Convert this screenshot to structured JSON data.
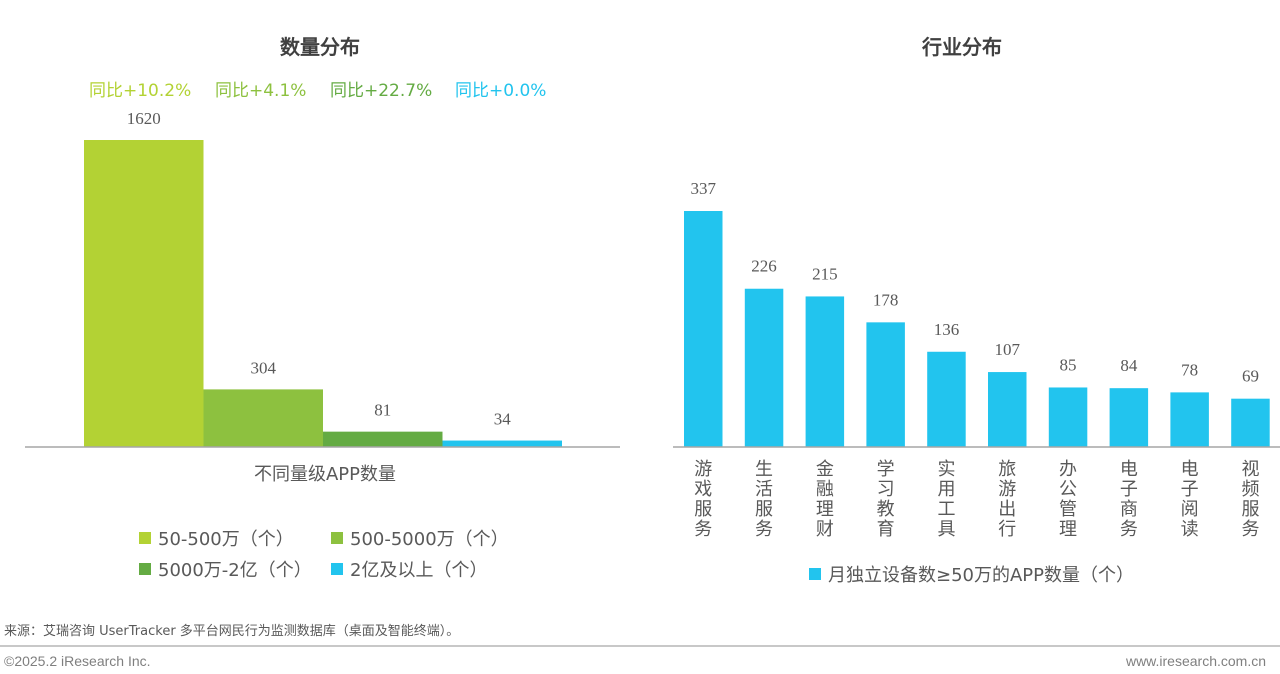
{
  "chart_data": [
    {
      "type": "bar",
      "title": "数量分布",
      "xlabel": "不同量级APP数量",
      "ylabel": "",
      "categories": [
        "50-500万（个）",
        "500-5000万（个）",
        "5000万-2亿（个）",
        "2亿及以上（个）"
      ],
      "values": [
        1620,
        304,
        81,
        34
      ],
      "colors": [
        "#b3d234",
        "#8dc13f",
        "#64ab43",
        "#22c4ee"
      ],
      "yoy_labels": [
        "同比+10.2%",
        "同比+4.1%",
        "同比+22.7%",
        "同比+0.0%"
      ],
      "yoy_colors": [
        "#b3d234",
        "#8dc13f",
        "#64ab43",
        "#22c4ee"
      ],
      "legend": {
        "placement": "bottom",
        "entries": [
          "50-500万（个）",
          "500-5000万（个）",
          "5000万-2亿（个）",
          "2亿及以上（个）"
        ]
      },
      "ylim": [
        0,
        1620
      ],
      "grid": false
    },
    {
      "type": "bar",
      "title": "行业分布",
      "xlabel": "",
      "ylabel": "",
      "categories": [
        "游戏服务",
        "生活服务",
        "金融理财",
        "学习教育",
        "实用工具",
        "旅游出行",
        "办公管理",
        "电子商务",
        "电子阅读",
        "视频服务"
      ],
      "series": [
        {
          "name": "月独立设备数≥50万的APP数量（个）",
          "values": [
            337,
            226,
            215,
            178,
            136,
            107,
            85,
            84,
            78,
            69
          ],
          "color": "#22c4ee"
        }
      ],
      "legend": {
        "placement": "bottom",
        "entries": [
          "月独立设备数≥50万的APP数量（个）"
        ]
      },
      "ylim": [
        0,
        337
      ],
      "grid": false
    }
  ],
  "footer": {
    "source": "来源：艾瑞咨询 UserTracker 多平台网民行为监测数据库（桌面及智能终端）。",
    "copyright": "©2025.2 iResearch Inc.",
    "website": "www.iresearch.com.cn"
  }
}
